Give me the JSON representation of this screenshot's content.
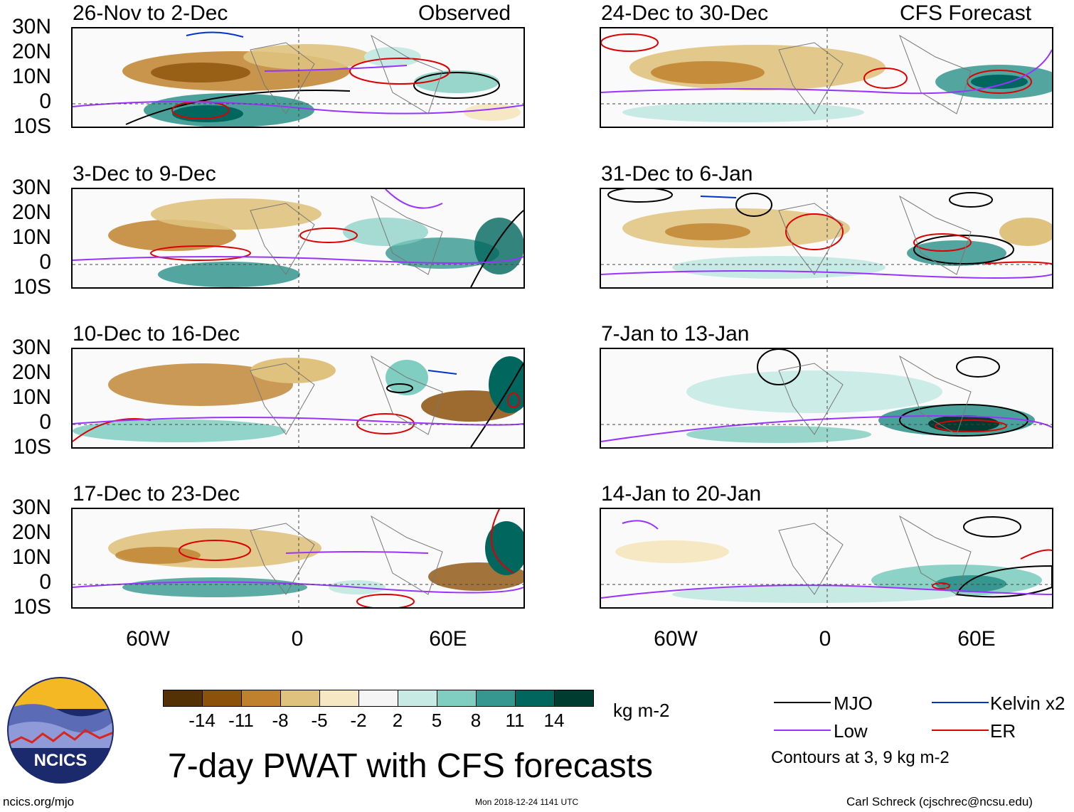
{
  "figure_title": "7-day PWAT with CFS forecasts",
  "left_header": "Observed",
  "right_header": "CFS Forecast",
  "panels_left": [
    {
      "title": "26-Nov to 2-Dec"
    },
    {
      "title": "3-Dec to 9-Dec"
    },
    {
      "title": "10-Dec to 16-Dec"
    },
    {
      "title": "17-Dec to 23-Dec"
    }
  ],
  "panels_right": [
    {
      "title": "24-Dec to 30-Dec"
    },
    {
      "title": "31-Dec to 6-Jan"
    },
    {
      "title": "7-Jan to 13-Jan"
    },
    {
      "title": "14-Jan to 20-Jan"
    }
  ],
  "lat_labels": [
    "30N",
    "20N",
    "10N",
    "0",
    "10S"
  ],
  "lon_labels": [
    "60W",
    "0",
    "60E"
  ],
  "colorbar": {
    "unit": "kg m-2",
    "labels": [
      "-14",
      "-11",
      "-8",
      "-5",
      "-2",
      "2",
      "5",
      "8",
      "11",
      "14"
    ],
    "colors": [
      "#543005",
      "#8c510a",
      "#bf812d",
      "#dfc27d",
      "#f6e8c3",
      "#f5f5f5",
      "#c7eae5",
      "#80cdc1",
      "#35978f",
      "#01665e",
      "#003c30"
    ]
  },
  "legend": {
    "items": [
      {
        "name": "MJO",
        "color": "#000000"
      },
      {
        "name": "Kelvin x2",
        "color": "#0033cc"
      },
      {
        "name": "Low",
        "color": "#9933ff"
      },
      {
        "name": "ER",
        "color": "#dd0000"
      }
    ],
    "note": "Contours at 3, 9 kg m-2"
  },
  "logo_text": "NCICS",
  "footer": {
    "left": "ncics.org/mjo",
    "center": "Mon 2018-12-24 1141 UTC",
    "right": "Carl Schreck (cjschrec@ncsu.edu)"
  }
}
